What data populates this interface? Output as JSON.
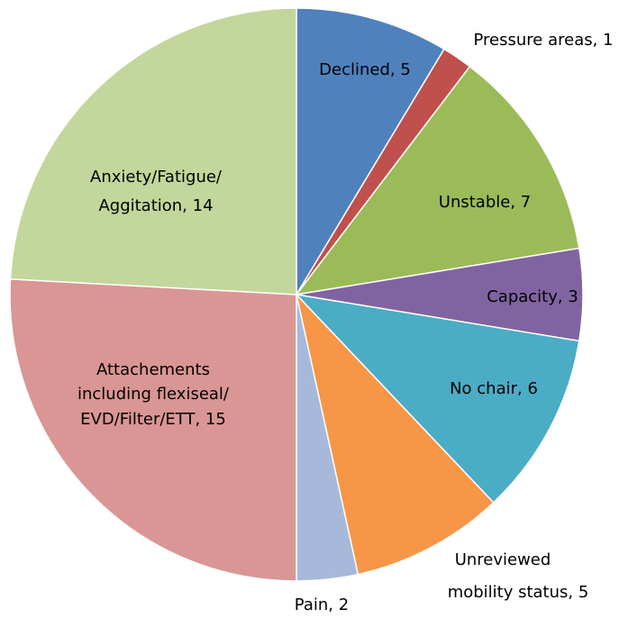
{
  "chart_data": {
    "type": "pie",
    "values": [
      5,
      1,
      7,
      3,
      6,
      5,
      2,
      15,
      14
    ],
    "value_labels": [
      [
        "Declined, 5"
      ],
      [
        "Pressure areas, 1"
      ],
      [
        "Unstable, 7"
      ],
      [
        "Capacity, 3"
      ],
      [
        "No chair, 6"
      ],
      [
        "Unreviewed",
        "mobility status, 5"
      ],
      [
        "Pain, 2"
      ],
      [
        "Attachements",
        "including flexiseal/",
        "EVD/Filter/ETT, 15"
      ],
      [
        "Anxiety/Fatigue/",
        "Aggitation, 14"
      ]
    ],
    "colors": [
      "#4f81bd",
      "#c0504d",
      "#9bbb59",
      "#8064a2",
      "#4bacc6",
      "#f79646",
      "#a7b9da",
      "#d99694",
      "#c3d69b"
    ]
  }
}
